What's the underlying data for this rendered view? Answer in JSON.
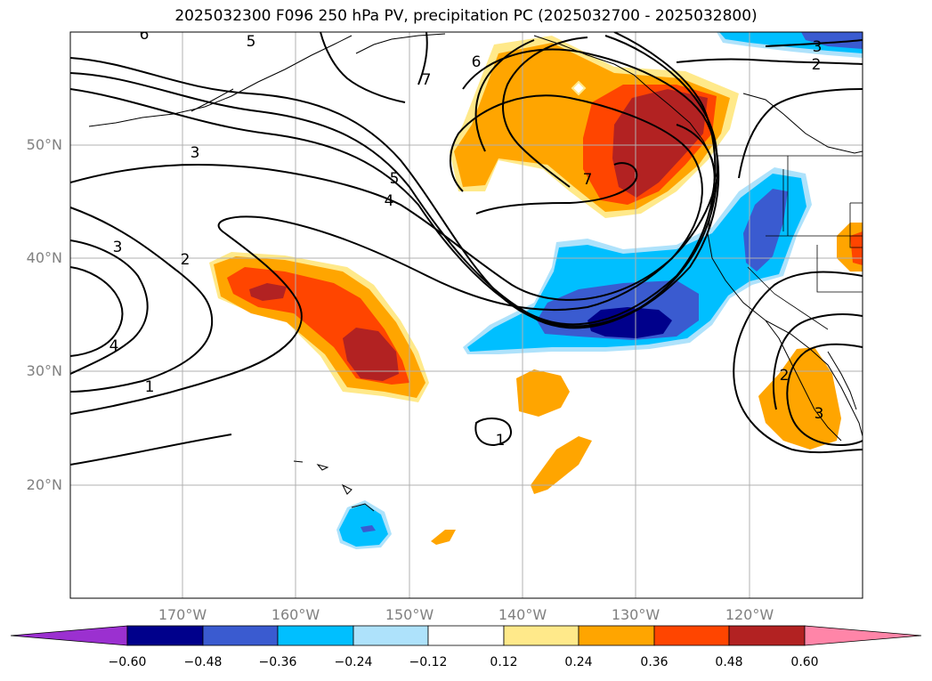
{
  "title": "2025032300 F096 250 hPa PV, precipitation PC (2025032700 - 2025032800)",
  "axes": {
    "lat_labels": [
      "50°N",
      "40°N",
      "30°N",
      "20°N"
    ],
    "lon_labels": [
      "170°W",
      "160°W",
      "150°W",
      "140°W",
      "130°W",
      "120°W"
    ]
  },
  "colorbar": {
    "ticks": [
      "−0.60",
      "−0.48",
      "−0.36",
      "−0.24",
      "−0.12",
      "0.12",
      "0.24",
      "0.36",
      "0.48",
      "0.60"
    ],
    "colors": [
      "#9b30d0",
      "#00008b",
      "#3a5bd0",
      "#00bfff",
      "#aee2fb",
      "#ffffff",
      "#ffe98a",
      "#ffa500",
      "#ff4500",
      "#b22222",
      "#ff85a8"
    ]
  },
  "contour_labels": [
    "6",
    "5",
    "7",
    "6",
    "3",
    "2",
    "3",
    "5",
    "4",
    "3",
    "2",
    "4",
    "1",
    "7",
    "1",
    "2",
    "3"
  ],
  "shading_colors": {
    "orange": "#ffa500",
    "orange_red": "#ff4500",
    "dark_red": "#b22222",
    "light_yellow": "#ffe98a",
    "deep_sky_blue": "#00bfff",
    "royal_blue": "#3a5bd0",
    "navy": "#00008b",
    "light_blue": "#aee2fb"
  }
}
